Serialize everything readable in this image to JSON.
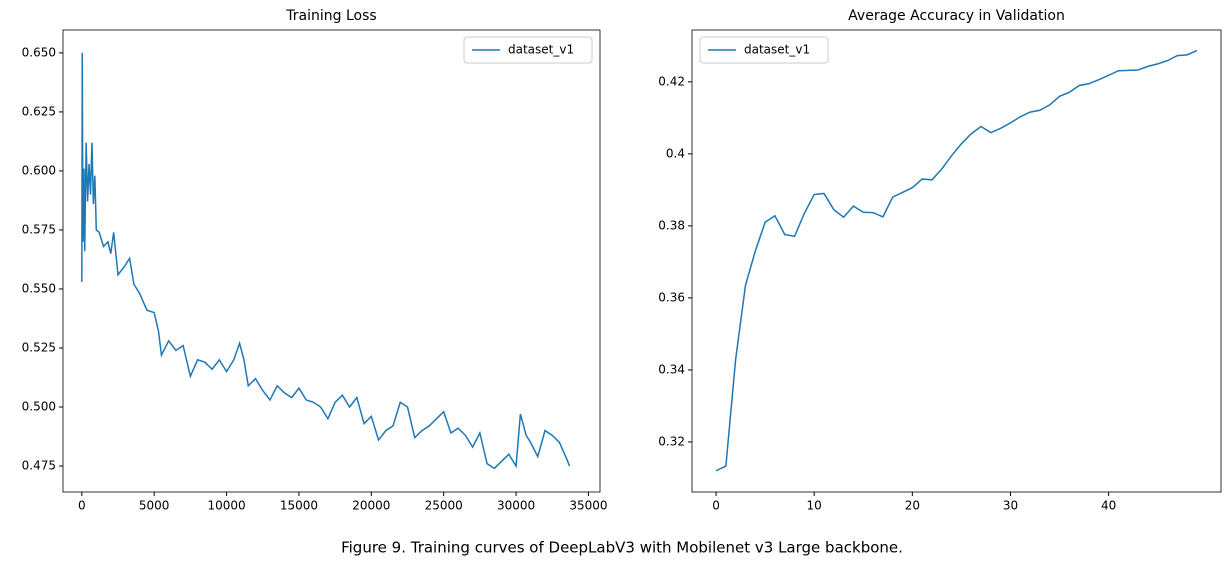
{
  "chart_data": [
    {
      "type": "line",
      "title": "Training Loss",
      "legend": "upper right",
      "grid": false,
      "x": [
        0,
        30,
        80,
        150,
        200,
        300,
        400,
        500,
        600,
        700,
        800,
        900,
        1000,
        1200,
        1500,
        1800,
        2000,
        2200,
        2500,
        3000,
        3300,
        3600,
        4000,
        4500,
        5000,
        5300,
        5500,
        6000,
        6500,
        7000,
        7500,
        8000,
        8500,
        9000,
        9500,
        10000,
        10500,
        10900,
        11200,
        11500,
        12000,
        12500,
        13000,
        13500,
        14000,
        14500,
        15000,
        15500,
        16000,
        16500,
        17000,
        17500,
        18000,
        18500,
        19000,
        19500,
        20000,
        20500,
        21000,
        21500,
        22000,
        22500,
        23000,
        23500,
        24000,
        24500,
        25000,
        25500,
        26000,
        26500,
        27000,
        27500,
        28000,
        28500,
        29000,
        29500,
        30000,
        30300,
        30700,
        31000,
        31500,
        32000,
        32500,
        33000,
        33500,
        33700
      ],
      "series": [
        {
          "name": "dataset_v1",
          "color": "#1f77b4",
          "values": [
            0.553,
            0.65,
            0.57,
            0.601,
            0.566,
            0.612,
            0.587,
            0.603,
            0.59,
            0.612,
            0.586,
            0.598,
            0.575,
            0.574,
            0.568,
            0.57,
            0.565,
            0.574,
            0.556,
            0.56,
            0.563,
            0.552,
            0.548,
            0.541,
            0.54,
            0.532,
            0.522,
            0.528,
            0.524,
            0.526,
            0.513,
            0.52,
            0.519,
            0.516,
            0.52,
            0.515,
            0.52,
            0.527,
            0.52,
            0.509,
            0.512,
            0.507,
            0.503,
            0.509,
            0.506,
            0.504,
            0.508,
            0.503,
            0.502,
            0.5,
            0.495,
            0.502,
            0.505,
            0.5,
            0.504,
            0.493,
            0.496,
            0.486,
            0.49,
            0.492,
            0.502,
            0.5,
            0.487,
            0.49,
            0.492,
            0.495,
            0.498,
            0.489,
            0.491,
            0.488,
            0.483,
            0.489,
            0.476,
            0.474,
            0.477,
            0.48,
            0.475,
            0.497,
            0.488,
            0.485,
            0.479,
            0.49,
            0.488,
            0.485,
            0.478,
            0.475
          ]
        }
      ],
      "xlim": [
        -1300,
        35800
      ],
      "xticks": [
        0,
        5000,
        10000,
        15000,
        20000,
        25000,
        30000,
        35000
      ],
      "ylim": [
        0.464,
        0.6597
      ],
      "yticks": [
        0.475,
        {
          "value": 0.5,
          "label": "0.500"
        },
        0.525,
        {
          "value": 0.55,
          "label": "0.550"
        },
        0.575,
        {
          "value": 0.6,
          "label": "0.600"
        },
        0.625,
        {
          "value": 0.65,
          "label": "0.650"
        }
      ]
    },
    {
      "type": "line",
      "title": "Average Accuracy in Validation",
      "legend": "upper left",
      "grid": false,
      "x": [
        0,
        1,
        2,
        3,
        4,
        5,
        6,
        7,
        8,
        9,
        10,
        11,
        12,
        13,
        14,
        15,
        16,
        17,
        18,
        19,
        20,
        21,
        22,
        23,
        24,
        25,
        26,
        27,
        28,
        29,
        30,
        31,
        32,
        33,
        34,
        35,
        36,
        37,
        38,
        39,
        40,
        41,
        42,
        43,
        44,
        45,
        46,
        47,
        48,
        49
      ],
      "series": [
        {
          "name": "dataset_v1",
          "color": "#1f77b4",
          "values": [
            0.312,
            0.3133,
            0.343,
            0.3635,
            0.373,
            0.381,
            0.3828,
            0.3776,
            0.3771,
            0.3835,
            0.3887,
            0.389,
            0.3845,
            0.3824,
            0.3855,
            0.3838,
            0.3837,
            0.3825,
            0.388,
            0.3893,
            0.3906,
            0.393,
            0.3928,
            0.3958,
            0.3995,
            0.4028,
            0.4056,
            0.4076,
            0.4059,
            0.4071,
            0.4086,
            0.4103,
            0.4116,
            0.4121,
            0.4136,
            0.416,
            0.4171,
            0.419,
            0.4195,
            0.4206,
            0.4218,
            0.4231,
            0.4232,
            0.4233,
            0.4243,
            0.425,
            0.4259,
            0.4273,
            0.4275,
            0.4287
          ]
        }
      ],
      "xlim": [
        -2.45,
        51.45
      ],
      "xticks": [
        0,
        10,
        20,
        30,
        40
      ],
      "ylim": [
        0.3061,
        0.4344
      ],
      "yticks": [
        0.32,
        0.34,
        0.36,
        0.38,
        0.4,
        0.42
      ]
    }
  ],
  "caption": "Figure 9. Training curves of DeepLabV3 with Mobilenet v3 Large backbone."
}
